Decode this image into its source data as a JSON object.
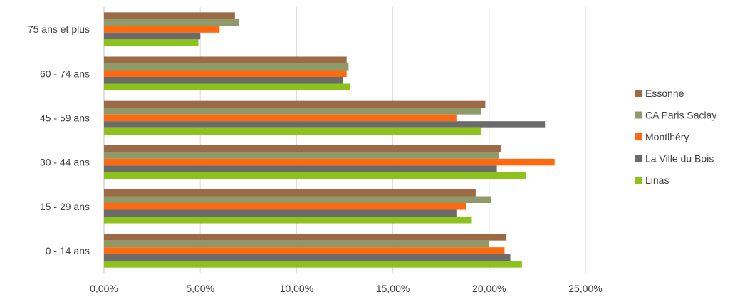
{
  "chart_data": {
    "type": "bar",
    "orientation": "horizontal",
    "title": "",
    "xlabel": "",
    "ylabel": "",
    "xlim": [
      0,
      25
    ],
    "x_ticks": [
      "0,00%",
      "5,00%",
      "10,00%",
      "15,00%",
      "20,00%",
      "25,00%"
    ],
    "grid": "vertical",
    "legend_position": "right",
    "categories": [
      "0 - 14 ans",
      "15 - 29 ans",
      "30 - 44 ans",
      "45 - 59 ans",
      "60 - 74 ans",
      "75 ans et plus"
    ],
    "series": [
      {
        "name": "Essonne",
        "color": "#9c6b45",
        "values": [
          20.9,
          19.3,
          20.6,
          19.8,
          12.6,
          6.8
        ]
      },
      {
        "name": "CA Paris Saclay",
        "color": "#8f9a6a",
        "values": [
          20.0,
          20.1,
          20.5,
          19.6,
          12.7,
          7.0
        ]
      },
      {
        "name": "Montlhéry",
        "color": "#ff6a10",
        "values": [
          20.8,
          18.8,
          23.4,
          18.3,
          12.6,
          6.0
        ]
      },
      {
        "name": "La Ville du Bois",
        "color": "#6b6b6b",
        "values": [
          21.1,
          18.3,
          20.4,
          22.9,
          12.4,
          5.0
        ]
      },
      {
        "name": "Linas",
        "color": "#8cc21a",
        "values": [
          21.7,
          19.1,
          21.9,
          19.6,
          12.8,
          4.9
        ]
      }
    ]
  }
}
